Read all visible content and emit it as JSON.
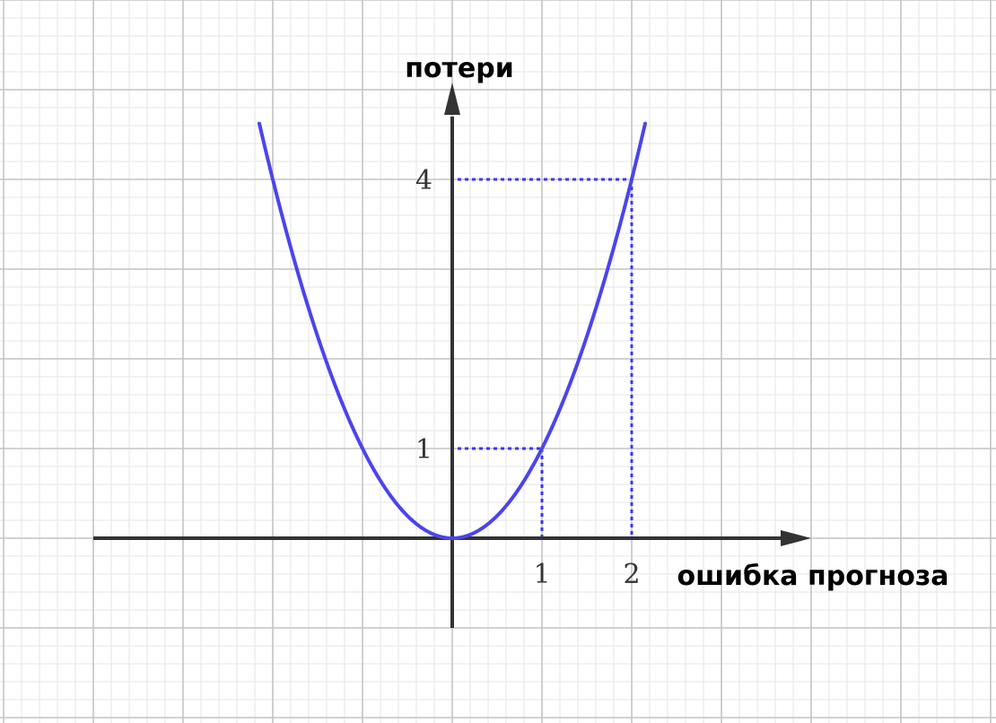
{
  "chart_data": {
    "type": "line",
    "title": "",
    "xlabel": "ошибка прогноза",
    "ylabel": "потери",
    "xlim": [
      -4,
      4
    ],
    "ylim": [
      -1,
      5
    ],
    "grid": true,
    "x_ticks": [
      {
        "value": 1,
        "label": "1"
      },
      {
        "value": 2,
        "label": "2"
      }
    ],
    "y_ticks": [
      {
        "value": 1,
        "label": "1"
      },
      {
        "value": 4,
        "label": "4"
      }
    ],
    "series": [
      {
        "function": "y = x^2",
        "x": [
          -2.15,
          -2.0,
          -1.5,
          -1.0,
          -0.5,
          0,
          0.5,
          1.0,
          1.5,
          2.0,
          2.15
        ],
        "y": [
          4.62,
          4.0,
          2.25,
          1.0,
          0.25,
          0,
          0.25,
          1.0,
          2.25,
          4.0,
          4.62
        ],
        "color": "#4b44ee"
      }
    ],
    "guide_points": [
      {
        "x": 1,
        "y": 1
      },
      {
        "x": 2,
        "y": 4
      }
    ],
    "colors": {
      "curve": "#4b44ee",
      "guides": "#3d35f0",
      "axes": "#333333",
      "grid_major": "#c4c4c4",
      "grid_minor": "#e6e6e6"
    }
  }
}
